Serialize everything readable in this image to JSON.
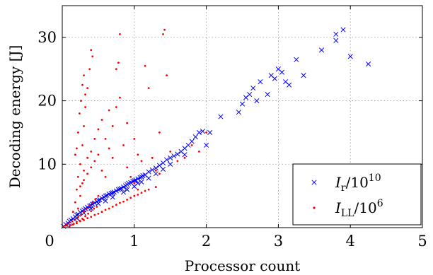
{
  "chart_data": {
    "type": "scatter",
    "title": "",
    "xlabel": "Processor count",
    "ylabel": "Decoding energy [J]",
    "xlim": [
      0,
      5
    ],
    "ylim": [
      0,
      35
    ],
    "x_ticks": [
      "0",
      "1",
      "2",
      "3",
      "4",
      "5"
    ],
    "y_ticks": [
      "0",
      "10",
      "20",
      "30"
    ],
    "grid": true,
    "legend_position": "bottom-right",
    "series": [
      {
        "name": "I_r/10^10",
        "legend_main": "I",
        "legend_sub": "r",
        "legend_rest": "/10",
        "legend_sup": "10",
        "marker": "x",
        "color": "#0000ff",
        "points": [
          [
            0.02,
            0.2
          ],
          [
            0.05,
            0.5
          ],
          [
            0.08,
            0.7
          ],
          [
            0.1,
            1.0
          ],
          [
            0.12,
            1.2
          ],
          [
            0.15,
            1.4
          ],
          [
            0.18,
            1.7
          ],
          [
            0.2,
            2.0
          ],
          [
            0.22,
            2.1
          ],
          [
            0.25,
            2.4
          ],
          [
            0.28,
            2.6
          ],
          [
            0.3,
            2.8
          ],
          [
            0.32,
            3.0
          ],
          [
            0.35,
            3.2
          ],
          [
            0.38,
            3.4
          ],
          [
            0.4,
            3.5
          ],
          [
            0.42,
            3.7
          ],
          [
            0.45,
            3.9
          ],
          [
            0.48,
            4.1
          ],
          [
            0.5,
            4.3
          ],
          [
            0.52,
            4.4
          ],
          [
            0.55,
            4.6
          ],
          [
            0.58,
            4.8
          ],
          [
            0.6,
            5.0
          ],
          [
            0.62,
            5.1
          ],
          [
            0.65,
            5.3
          ],
          [
            0.68,
            5.4
          ],
          [
            0.7,
            5.5
          ],
          [
            0.72,
            5.6
          ],
          [
            0.75,
            5.8
          ],
          [
            0.78,
            6.0
          ],
          [
            0.8,
            6.1
          ],
          [
            0.82,
            6.2
          ],
          [
            0.85,
            6.4
          ],
          [
            0.88,
            6.6
          ],
          [
            0.9,
            6.8
          ],
          [
            0.92,
            7.0
          ],
          [
            0.95,
            7.1
          ],
          [
            0.98,
            7.3
          ],
          [
            1.0,
            7.4
          ],
          [
            1.02,
            7.5
          ],
          [
            1.05,
            7.7
          ],
          [
            1.08,
            7.9
          ],
          [
            1.1,
            8.0
          ],
          [
            1.12,
            8.2
          ],
          [
            1.15,
            8.3
          ],
          [
            1.2,
            8.8
          ],
          [
            1.25,
            9.1
          ],
          [
            1.3,
            9.4
          ],
          [
            1.35,
            9.8
          ],
          [
            1.4,
            10.2
          ],
          [
            1.45,
            10.7
          ],
          [
            1.5,
            11.0
          ],
          [
            1.55,
            11.3
          ],
          [
            1.6,
            11.6
          ],
          [
            1.65,
            12.0
          ],
          [
            1.7,
            12.5
          ],
          [
            1.75,
            13.0
          ],
          [
            1.8,
            13.6
          ],
          [
            1.85,
            14.3
          ],
          [
            1.9,
            15.0
          ],
          [
            1.95,
            15.2
          ],
          [
            2.0,
            13.0
          ],
          [
            2.05,
            15.0
          ],
          [
            2.2,
            17.5
          ],
          [
            2.45,
            18.2
          ],
          [
            2.5,
            19.5
          ],
          [
            2.55,
            20.5
          ],
          [
            2.6,
            21.0
          ],
          [
            2.65,
            22.0
          ],
          [
            2.7,
            20.0
          ],
          [
            2.75,
            23.0
          ],
          [
            2.85,
            21.0
          ],
          [
            2.9,
            24.0
          ],
          [
            2.95,
            23.5
          ],
          [
            3.0,
            25.0
          ],
          [
            3.05,
            24.5
          ],
          [
            3.1,
            23.0
          ],
          [
            3.15,
            22.5
          ],
          [
            3.25,
            26.5
          ],
          [
            3.35,
            24.0
          ],
          [
            3.6,
            28.0
          ],
          [
            3.8,
            29.5
          ],
          [
            3.8,
            30.5
          ],
          [
            3.9,
            31.2
          ],
          [
            4.0,
            27.0
          ],
          [
            4.25,
            25.8
          ],
          [
            0.6,
            4.2
          ],
          [
            0.7,
            4.8
          ],
          [
            0.9,
            6.0
          ],
          [
            1.0,
            6.5
          ],
          [
            1.1,
            7.2
          ],
          [
            1.3,
            8.5
          ],
          [
            1.5,
            10.0
          ],
          [
            1.7,
            11.5
          ],
          [
            0.4,
            3.0
          ],
          [
            0.5,
            3.8
          ],
          [
            0.3,
            2.3
          ],
          [
            0.2,
            1.5
          ],
          [
            0.85,
            5.6
          ],
          [
            1.05,
            7.0
          ],
          [
            1.2,
            7.8
          ],
          [
            1.4,
            9.2
          ]
        ]
      },
      {
        "name": "I_LL/10^6",
        "legend_main": "I",
        "legend_sub": "LL",
        "legend_rest": "/10",
        "legend_sup": "6",
        "marker": "dot",
        "color": "#ff0000",
        "points": [
          [
            0.02,
            0.1
          ],
          [
            0.05,
            0.3
          ],
          [
            0.07,
            0.5
          ],
          [
            0.1,
            0.8
          ],
          [
            0.12,
            0.4
          ],
          [
            0.14,
            1.0
          ],
          [
            0.16,
            0.6
          ],
          [
            0.18,
            1.3
          ],
          [
            0.2,
            0.9
          ],
          [
            0.22,
            1.6
          ],
          [
            0.24,
            1.1
          ],
          [
            0.26,
            2.0
          ],
          [
            0.28,
            1.4
          ],
          [
            0.3,
            2.5
          ],
          [
            0.32,
            1.8
          ],
          [
            0.34,
            3.0
          ],
          [
            0.36,
            2.2
          ],
          [
            0.38,
            3.5
          ],
          [
            0.4,
            2.6
          ],
          [
            0.42,
            4.0
          ],
          [
            0.44,
            3.0
          ],
          [
            0.46,
            4.5
          ],
          [
            0.48,
            3.3
          ],
          [
            0.5,
            5.0
          ],
          [
            0.15,
            2.5
          ],
          [
            0.18,
            4.0
          ],
          [
            0.2,
            6.0
          ],
          [
            0.22,
            8.0
          ],
          [
            0.25,
            10.0
          ],
          [
            0.28,
            13.0
          ],
          [
            0.3,
            16.0
          ],
          [
            0.32,
            19.0
          ],
          [
            0.35,
            22.0
          ],
          [
            0.38,
            25.0
          ],
          [
            0.4,
            28.0
          ],
          [
            0.42,
            27.0
          ],
          [
            0.22,
            3.0
          ],
          [
            0.25,
            5.0
          ],
          [
            0.28,
            7.0
          ],
          [
            0.3,
            9.0
          ],
          [
            0.35,
            11.0
          ],
          [
            0.4,
            12.0
          ],
          [
            0.45,
            14.0
          ],
          [
            0.5,
            15.5
          ],
          [
            0.55,
            17.0
          ],
          [
            0.6,
            14.0
          ],
          [
            0.65,
            12.5
          ],
          [
            0.7,
            11.0
          ],
          [
            0.75,
            25.0
          ],
          [
            0.8,
            30.5
          ],
          [
            0.78,
            26.0
          ],
          [
            0.85,
            13.0
          ],
          [
            0.9,
            9.5
          ],
          [
            0.95,
            8.0
          ],
          [
            1.0,
            7.0
          ],
          [
            1.05,
            6.0
          ],
          [
            1.1,
            10.5
          ],
          [
            1.15,
            25.5
          ],
          [
            1.2,
            22.0
          ],
          [
            1.25,
            11.0
          ],
          [
            1.3,
            9.0
          ],
          [
            1.35,
            8.5
          ],
          [
            1.4,
            30.5
          ],
          [
            1.42,
            31.2
          ],
          [
            1.45,
            24.0
          ],
          [
            1.5,
            12.0
          ],
          [
            1.6,
            10.5
          ],
          [
            1.7,
            11.0
          ],
          [
            1.8,
            13.0
          ],
          [
            1.9,
            12.0
          ],
          [
            2.0,
            15.0
          ],
          [
            0.1,
            0.2
          ],
          [
            0.15,
            0.5
          ],
          [
            0.2,
            0.7
          ],
          [
            0.25,
            1.0
          ],
          [
            0.3,
            1.2
          ],
          [
            0.35,
            1.5
          ],
          [
            0.4,
            1.7
          ],
          [
            0.45,
            2.0
          ],
          [
            0.5,
            2.2
          ],
          [
            0.55,
            2.5
          ],
          [
            0.6,
            2.8
          ],
          [
            0.65,
            3.0
          ],
          [
            0.7,
            3.3
          ],
          [
            0.75,
            3.6
          ],
          [
            0.8,
            3.9
          ],
          [
            0.85,
            4.1
          ],
          [
            0.9,
            4.4
          ],
          [
            0.95,
            4.7
          ],
          [
            1.0,
            5.0
          ],
          [
            1.05,
            5.2
          ],
          [
            1.1,
            5.5
          ],
          [
            1.15,
            5.8
          ],
          [
            1.2,
            6.0
          ],
          [
            1.3,
            6.4
          ],
          [
            0.25,
            6.5
          ],
          [
            0.3,
            7.5
          ],
          [
            0.35,
            8.5
          ],
          [
            0.4,
            9.5
          ],
          [
            0.45,
            10.5
          ],
          [
            0.5,
            11.5
          ],
          [
            0.55,
            9.0
          ],
          [
            0.6,
            8.0
          ],
          [
            0.18,
            11.5
          ],
          [
            0.2,
            12.5
          ],
          [
            0.22,
            15.0
          ],
          [
            0.24,
            18.0
          ],
          [
            0.26,
            20.0
          ],
          [
            0.28,
            22.5
          ],
          [
            0.3,
            24.0
          ],
          [
            0.32,
            21.0
          ],
          [
            0.65,
            18.5
          ],
          [
            0.7,
            16.0
          ],
          [
            0.75,
            19.0
          ],
          [
            0.8,
            20.5
          ],
          [
            0.9,
            16.5
          ],
          [
            1.0,
            14.0
          ],
          [
            1.05,
            11.5
          ],
          [
            1.35,
            15.0
          ]
        ]
      }
    ]
  }
}
